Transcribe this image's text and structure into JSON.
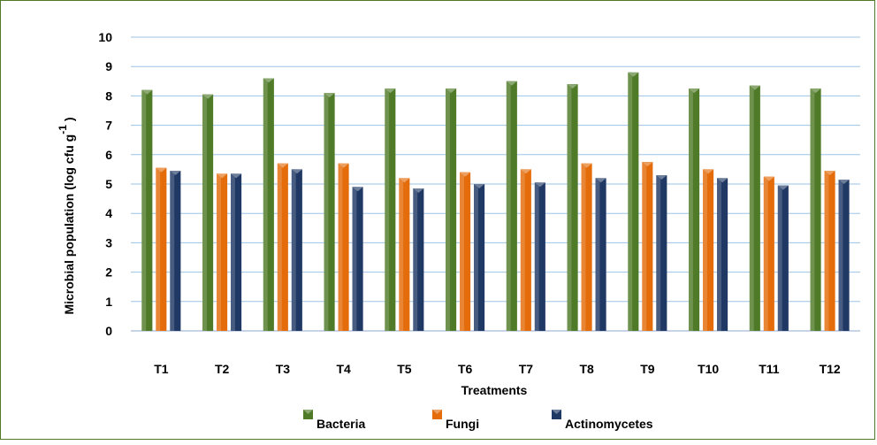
{
  "chart_data": {
    "type": "bar",
    "categories": [
      "T1",
      "T2",
      "T3",
      "T4",
      "T5",
      "T6",
      "T7",
      "T8",
      "T9",
      "T10",
      "T11",
      "T12"
    ],
    "series": [
      {
        "name": "Bacteria",
        "color": "#4f7a28",
        "values": [
          8.2,
          8.05,
          8.6,
          8.1,
          8.25,
          8.25,
          8.5,
          8.4,
          8.8,
          8.25,
          8.35,
          8.25
        ]
      },
      {
        "name": "Fungi",
        "color": "#e46c0a",
        "values": [
          5.55,
          5.35,
          5.7,
          5.7,
          5.2,
          5.4,
          5.5,
          5.7,
          5.75,
          5.5,
          5.25,
          5.45
        ]
      },
      {
        "name": "Actinomycetes",
        "color": "#1f3864",
        "values": [
          5.45,
          5.35,
          5.5,
          4.9,
          4.85,
          5.0,
          5.05,
          5.2,
          5.3,
          5.2,
          4.95,
          5.15
        ]
      }
    ],
    "ylim": [
      0,
      10
    ],
    "yticks": [
      "0",
      "1",
      "2",
      "3",
      "4",
      "5",
      "6",
      "7",
      "8",
      "9",
      "10"
    ],
    "xlabel": "Treatments",
    "ylabel": "Microbial population (log cfu g",
    "ylabel_superscript": "-1",
    "ylabel_close": ")",
    "grid": true,
    "legend_position": "bottom"
  }
}
